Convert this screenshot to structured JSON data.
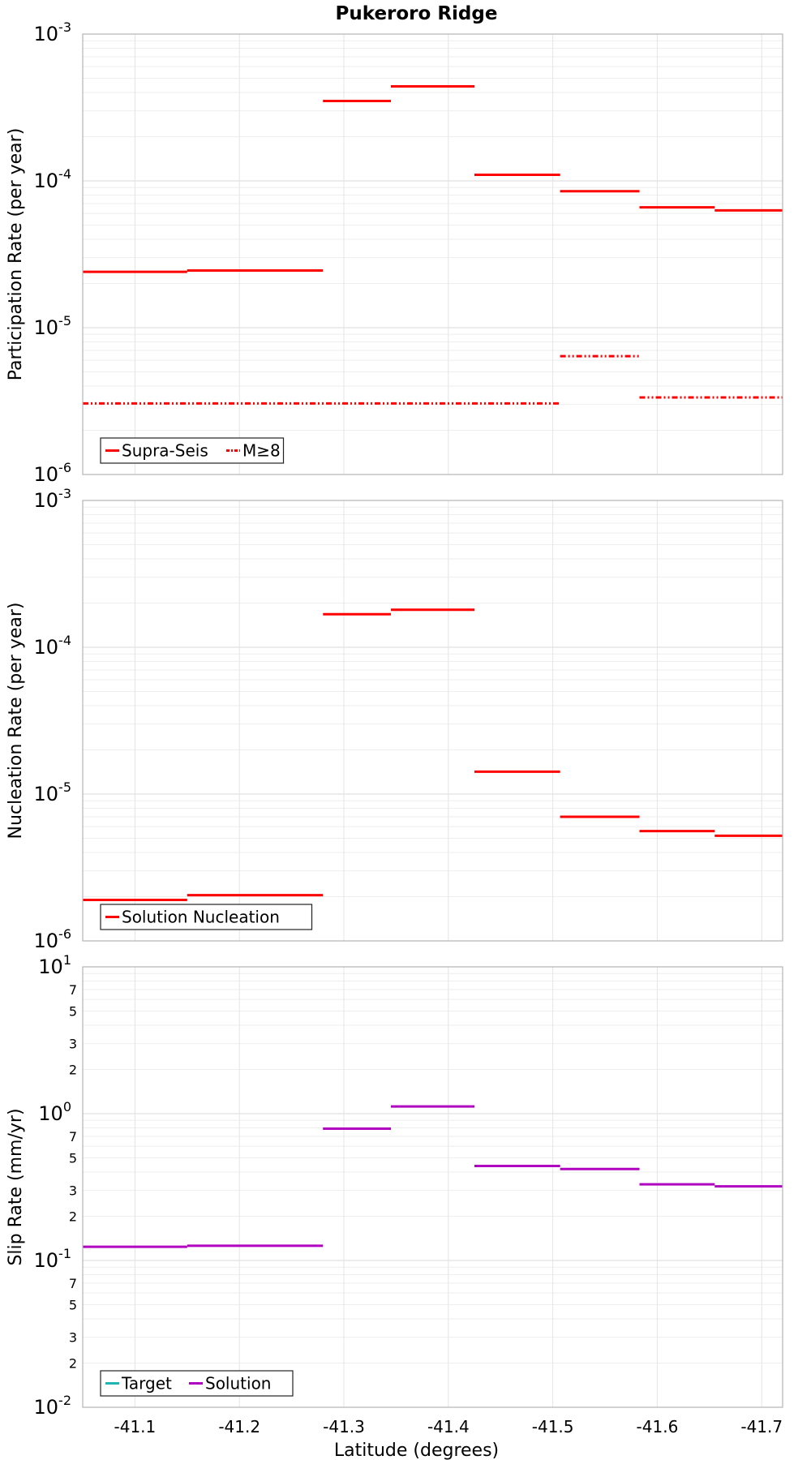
{
  "chart_data": [
    {
      "type": "line",
      "title": "Pukeroro Ridge",
      "ylabel": "Participation Rate (per year)",
      "yscale": "log",
      "ylim": [
        1e-06,
        0.001
      ],
      "xlim": [
        -41.05,
        -41.72
      ],
      "xticks": [
        "-41.1",
        "-41.2",
        "-41.3",
        "-41.4",
        "-41.5",
        "-41.6",
        "-41.7"
      ],
      "yticks": [
        {
          "base": "10",
          "exp": "-6"
        },
        {
          "base": "10",
          "exp": "-5"
        },
        {
          "base": "10",
          "exp": "-4"
        },
        {
          "base": "10",
          "exp": "-3"
        }
      ],
      "grid": true,
      "legend_position": "bottom-left",
      "series": [
        {
          "name": "Supra-Seis",
          "color": "#ff0000",
          "style": "solid",
          "segments": [
            {
              "x0": -41.05,
              "x1": -41.15,
              "y": 2.4e-05
            },
            {
              "x0": -41.15,
              "x1": -41.28,
              "y": 2.45e-05
            },
            {
              "x0": -41.28,
              "x1": -41.345,
              "y": 0.00035
            },
            {
              "x0": -41.345,
              "x1": -41.425,
              "y": 0.00044
            },
            {
              "x0": -41.425,
              "x1": -41.507,
              "y": 0.00011
            },
            {
              "x0": -41.507,
              "x1": -41.583,
              "y": 8.5e-05
            },
            {
              "x0": -41.583,
              "x1": -41.655,
              "y": 6.6e-05
            },
            {
              "x0": -41.655,
              "x1": -41.72,
              "y": 6.3e-05
            }
          ]
        },
        {
          "name": "M≥8",
          "color": "#ff0000",
          "style": "dashdot",
          "segments": [
            {
              "x0": -41.05,
              "x1": -41.507,
              "y": 3.05e-06
            },
            {
              "x0": -41.507,
              "x1": -41.583,
              "y": 6.4e-06
            },
            {
              "x0": -41.583,
              "x1": -41.72,
              "y": 3.35e-06
            }
          ]
        }
      ]
    },
    {
      "type": "line",
      "ylabel": "Nucleation Rate (per year)",
      "yscale": "log",
      "ylim": [
        1e-06,
        0.001
      ],
      "xlim": [
        -41.05,
        -41.72
      ],
      "yticks": [
        {
          "base": "10",
          "exp": "-6"
        },
        {
          "base": "10",
          "exp": "-5"
        },
        {
          "base": "10",
          "exp": "-4"
        },
        {
          "base": "10",
          "exp": "-3"
        }
      ],
      "grid": true,
      "legend_position": "bottom-left",
      "series": [
        {
          "name": "Solution Nucleation",
          "color": "#ff0000",
          "style": "solid",
          "segments": [
            {
              "x0": -41.05,
              "x1": -41.15,
              "y": 1.9e-06
            },
            {
              "x0": -41.15,
              "x1": -41.28,
              "y": 2.05e-06
            },
            {
              "x0": -41.28,
              "x1": -41.345,
              "y": 0.000168
            },
            {
              "x0": -41.345,
              "x1": -41.425,
              "y": 0.00018
            },
            {
              "x0": -41.425,
              "x1": -41.507,
              "y": 1.42e-05
            },
            {
              "x0": -41.507,
              "x1": -41.583,
              "y": 7e-06
            },
            {
              "x0": -41.583,
              "x1": -41.655,
              "y": 5.6e-06
            },
            {
              "x0": -41.655,
              "x1": -41.72,
              "y": 5.2e-06
            }
          ]
        }
      ]
    },
    {
      "type": "line",
      "xlabel": "Latitude (degrees)",
      "ylabel": "Slip Rate (mm/yr)",
      "yscale": "log",
      "ylim": [
        0.01,
        10
      ],
      "xlim": [
        -41.05,
        -41.72
      ],
      "yticks": [
        {
          "base": "10",
          "exp": "-2"
        },
        {
          "base": "10",
          "exp": "-1"
        },
        {
          "base": "10",
          "exp": "0"
        },
        {
          "base": "10",
          "exp": "1"
        }
      ],
      "minor_ytick_labels": [
        "2",
        "3",
        "5",
        "7"
      ],
      "grid": true,
      "legend_position": "bottom-left",
      "series": [
        {
          "name": "Target",
          "color": "#1fb5b0",
          "style": "solid",
          "segments": []
        },
        {
          "name": "Solution",
          "color": "#b000c0",
          "style": "solid",
          "segments": [
            {
              "x0": -41.05,
              "x1": -41.15,
              "y": 0.124
            },
            {
              "x0": -41.15,
              "x1": -41.28,
              "y": 0.126
            },
            {
              "x0": -41.28,
              "x1": -41.345,
              "y": 0.79
            },
            {
              "x0": -41.345,
              "x1": -41.425,
              "y": 1.12
            },
            {
              "x0": -41.425,
              "x1": -41.507,
              "y": 0.44
            },
            {
              "x0": -41.507,
              "x1": -41.583,
              "y": 0.42
            },
            {
              "x0": -41.583,
              "x1": -41.655,
              "y": 0.33
            },
            {
              "x0": -41.655,
              "x1": -41.72,
              "y": 0.32
            }
          ]
        }
      ]
    }
  ]
}
